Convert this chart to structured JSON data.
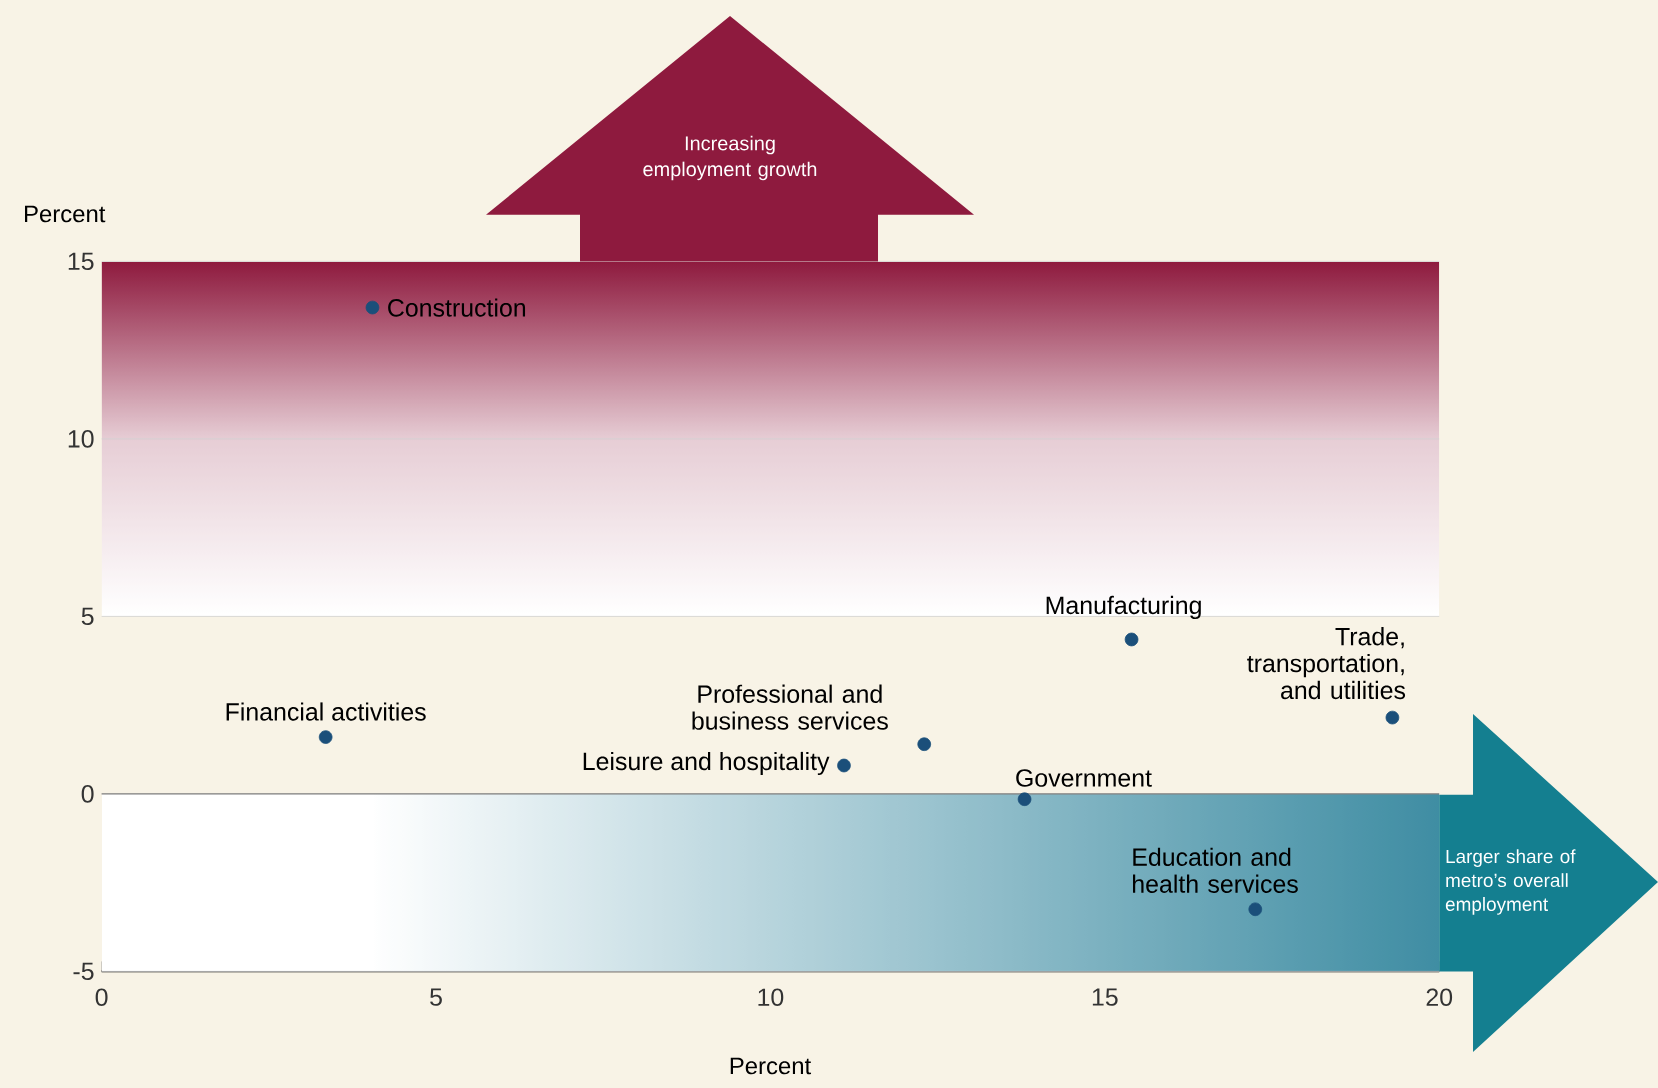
{
  "chart_data": {
    "type": "scatter",
    "xlabel": "Percent",
    "ylabel": "Percent",
    "x": [
      4.05,
      3.35,
      11.1,
      12.3,
      13.8,
      15.4,
      19.3,
      17.25
    ],
    "values": [
      13.7,
      1.6,
      0.8,
      1.4,
      -0.15,
      4.35,
      2.15,
      -3.25
    ],
    "color": "#1b4f7a",
    "grid": "y",
    "xlim": [
      0,
      20
    ],
    "ylim": [
      -5,
      15
    ],
    "xticks": [
      0,
      5,
      10,
      15,
      20
    ],
    "yticks": [
      -5,
      0,
      5,
      10,
      15
    ],
    "bands": [
      {
        "axis": "y",
        "from": 5,
        "to": 15,
        "color": "#8e1a3e"
      },
      {
        "axis": "y",
        "from": -5,
        "to": 0,
        "color": "#3f8da3"
      }
    ],
    "annotations": [
      {
        "text": "Construction",
        "x": 4.05,
        "y": 13.7
      },
      {
        "text": "Financial activities",
        "x": 3.35,
        "y": 1.6
      },
      {
        "text": "Leisure and hospitality",
        "x": 11.1,
        "y": 0.8
      },
      {
        "text": "Professional and business services",
        "x": 12.3,
        "y": 1.4
      },
      {
        "text": "Government",
        "x": 13.8,
        "y": -0.15
      },
      {
        "text": "Manufacturing",
        "x": 15.4,
        "y": 4.35
      },
      {
        "text": "Trade, transportation, and utilities",
        "x": 19.3,
        "y": 2.15
      },
      {
        "text": "Education and health services",
        "x": 17.25,
        "y": -3.25
      },
      "Increasing employment growth",
      "Larger share of metro’s overall employment"
    ]
  }
}
